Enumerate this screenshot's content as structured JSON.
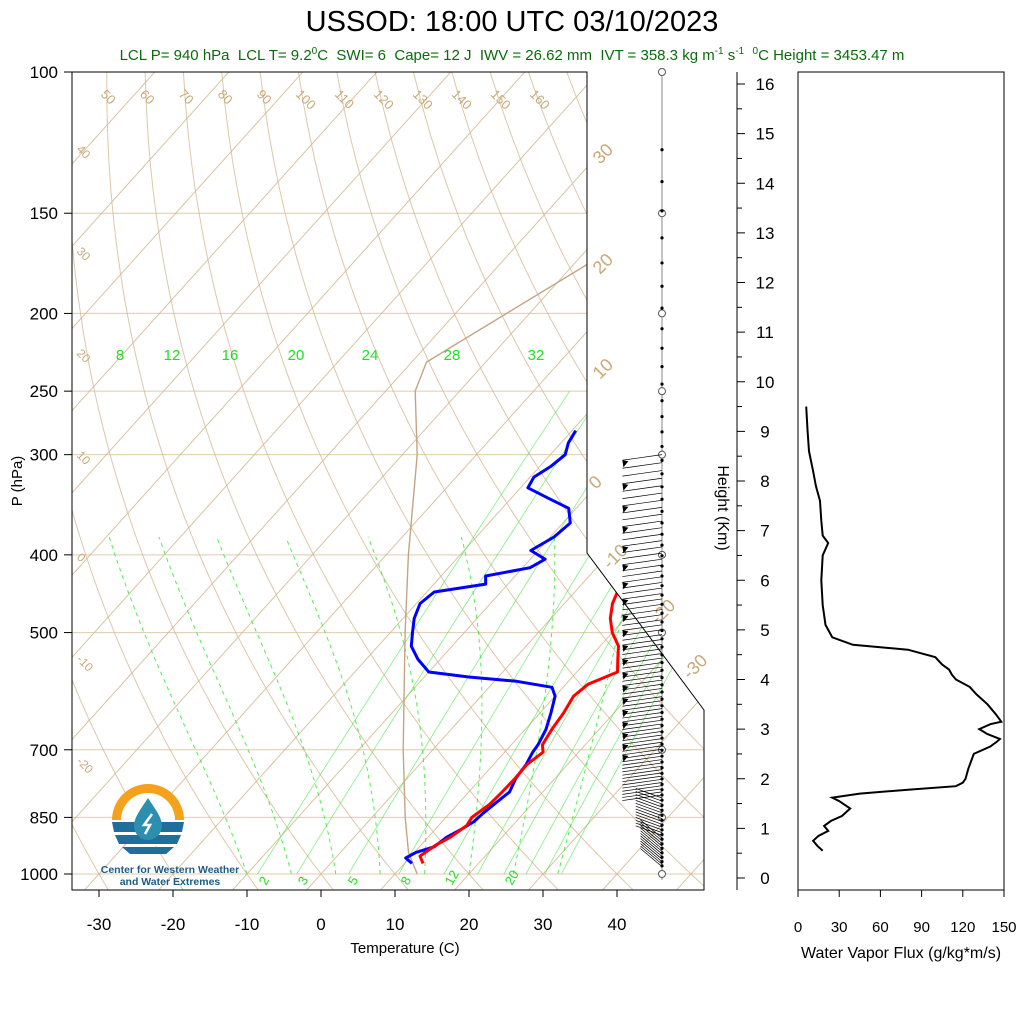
{
  "header": {
    "title": "USSOD: 18:00 UTC 03/10/2023",
    "lcl_p": "LCL P= 940 hPa",
    "lcl_t": "LCL T= 9.2",
    "lcl_t_unit": "C",
    "swi": "SWI= 6",
    "cape": "Cape= 12 J",
    "iwv": "IWV = 26.62 mm",
    "ivt": "IVT = 358.3 kg m",
    "ivt_exp1": "-1",
    "ivt_s": " s",
    "ivt_exp2": "-1",
    "zero_height": "0",
    "zero_height_rest": "C Height = 3453.47 m"
  },
  "logo": {
    "line1": "Center for Western Weather",
    "line2": "and Water Extremes",
    "colors": {
      "orange": "#f4a21d",
      "blue": "#1f6e9c",
      "teal": "#2b8fb0"
    },
    "icon": "water-drop-icon"
  },
  "colors": {
    "temperature": "#ff0000",
    "dewpoint": "#0000ff",
    "isotherm": "#d2b48c",
    "mixing_ratio": "#2ee62e",
    "parcel": "#c4a484",
    "flux": "#000000"
  },
  "chart_data": [
    {
      "type": "line",
      "name": "skew-t",
      "xlabel": "Temperature (C)",
      "ylabel": "P (hPa)",
      "xlim": [
        -35,
        52
      ],
      "ylim": [
        1000,
        100
      ],
      "yscale": "log",
      "x_ticks": [
        -30,
        -20,
        -10,
        0,
        10,
        20,
        30,
        40
      ],
      "y_ticks": [
        100,
        150,
        200,
        250,
        300,
        400,
        500,
        700,
        850,
        1000
      ],
      "skewed_isotherm_labels": [
        -20,
        -10,
        0,
        10,
        20,
        30
      ],
      "isotherm_labels_left": [
        40,
        30,
        20,
        10,
        0,
        -10,
        -20
      ],
      "dry_adiabat_labels": [
        50,
        60,
        70,
        80,
        90,
        100,
        110,
        120,
        130,
        140,
        150,
        160
      ],
      "moist_adiabat_labels_top": [
        8,
        12,
        16,
        20,
        24,
        28,
        32
      ],
      "mixing_ratio_labels_bottom": [
        2,
        3,
        5,
        8,
        12,
        20
      ],
      "temperature": [
        [
          970,
          12.5
        ],
        [
          950,
          11.2
        ],
        [
          920,
          12.0
        ],
        [
          900,
          13.0
        ],
        [
          870,
          13.8
        ],
        [
          850,
          13.5
        ],
        [
          820,
          14.3
        ],
        [
          790,
          14.5
        ],
        [
          760,
          14.6
        ],
        [
          730,
          14.5
        ],
        [
          705,
          15.2
        ],
        [
          690,
          14.2
        ],
        [
          660,
          13.6
        ],
        [
          630,
          13.2
        ],
        [
          600,
          12.5
        ],
        [
          580,
          13.0
        ],
        [
          560,
          15.5
        ],
        [
          540,
          14.0
        ],
        [
          520,
          12.5
        ],
        [
          500,
          10.0
        ],
        [
          480,
          8.0
        ],
        [
          460,
          6.5
        ],
        [
          440,
          5.5
        ],
        [
          420,
          5.0
        ],
        [
          405,
          5.5
        ],
        [
          395,
          3.0
        ],
        [
          380,
          1.5
        ],
        [
          360,
          -0.5
        ],
        [
          340,
          -1.5
        ],
        [
          320,
          -3.5
        ],
        [
          300,
          -5.5
        ],
        [
          285,
          -6.5
        ]
      ],
      "dewpoint": [
        [
          970,
          11.0
        ],
        [
          955,
          9.5
        ],
        [
          940,
          10.2
        ],
        [
          925,
          12.0
        ],
        [
          900,
          12.5
        ],
        [
          880,
          13.5
        ],
        [
          860,
          14.3
        ],
        [
          840,
          14.5
        ],
        [
          815,
          15.0
        ],
        [
          790,
          15.5
        ],
        [
          760,
          14.7
        ],
        [
          730,
          14.4
        ],
        [
          705,
          13.8
        ],
        [
          690,
          13.6
        ],
        [
          660,
          12.8
        ],
        [
          630,
          11.5
        ],
        [
          600,
          10.0
        ],
        [
          585,
          8.5
        ],
        [
          575,
          3.0
        ],
        [
          568,
          -4.0
        ],
        [
          560,
          -10.0
        ],
        [
          540,
          -13.0
        ],
        [
          520,
          -15.5
        ],
        [
          500,
          -17.0
        ],
        [
          480,
          -18.5
        ],
        [
          460,
          -19.5
        ],
        [
          445,
          -19.0
        ],
        [
          435,
          -13.0
        ],
        [
          425,
          -14.0
        ],
        [
          415,
          -9.0
        ],
        [
          405,
          -8.0
        ],
        [
          395,
          -11.0
        ],
        [
          380,
          -9.5
        ],
        [
          365,
          -9.0
        ],
        [
          350,
          -11.0
        ],
        [
          340,
          -15.0
        ],
        [
          330,
          -19.0
        ],
        [
          320,
          -19.5
        ],
        [
          310,
          -18.5
        ],
        [
          300,
          -18.0
        ],
        [
          290,
          -19.0
        ],
        [
          280,
          -19.5
        ]
      ],
      "parcel": [
        [
          1000,
          13.0
        ],
        [
          940,
          9.2
        ],
        [
          850,
          4.5
        ],
        [
          700,
          -4.0
        ],
        [
          500,
          -18.0
        ],
        [
          400,
          -27.0
        ],
        [
          300,
          -38.0
        ],
        [
          250,
          -46.0
        ],
        [
          230,
          -48.0
        ],
        [
          150,
          -33.0
        ],
        [
          100,
          -24.0
        ]
      ]
    },
    {
      "type": "line",
      "name": "water-vapor-flux",
      "xlabel": "Water Vapor Flux (g/kg*m/s)",
      "ylabel": "Height (Km)",
      "xlim": [
        0,
        150
      ],
      "ylim": [
        0,
        16.5
      ],
      "x_ticks": [
        0,
        30,
        60,
        90,
        120,
        150
      ],
      "y_ticks": [
        0,
        1,
        2,
        3,
        4,
        5,
        6,
        7,
        8,
        9,
        10,
        11,
        12,
        13,
        14,
        15,
        16
      ],
      "points": [
        [
          18,
          0.55
        ],
        [
          14,
          0.65
        ],
        [
          11,
          0.75
        ],
        [
          15,
          0.85
        ],
        [
          22,
          0.95
        ],
        [
          19,
          1.05
        ],
        [
          24,
          1.15
        ],
        [
          32,
          1.25
        ],
        [
          38,
          1.4
        ],
        [
          30,
          1.55
        ],
        [
          25,
          1.62
        ],
        [
          45,
          1.7
        ],
        [
          80,
          1.78
        ],
        [
          115,
          1.85
        ],
        [
          120,
          1.92
        ],
        [
          122,
          2.0
        ],
        [
          124,
          2.2
        ],
        [
          128,
          2.5
        ],
        [
          140,
          2.65
        ],
        [
          145,
          2.75
        ],
        [
          147,
          2.8
        ],
        [
          138,
          2.9
        ],
        [
          132,
          3.0
        ],
        [
          140,
          3.1
        ],
        [
          148,
          3.15
        ],
        [
          144,
          3.3
        ],
        [
          138,
          3.5
        ],
        [
          130,
          3.7
        ],
        [
          125,
          3.85
        ],
        [
          115,
          4.0
        ],
        [
          112,
          4.1
        ],
        [
          110,
          4.2
        ],
        [
          105,
          4.3
        ],
        [
          100,
          4.45
        ],
        [
          80,
          4.6
        ],
        [
          40,
          4.7
        ],
        [
          25,
          4.85
        ],
        [
          20,
          5.1
        ],
        [
          18,
          5.5
        ],
        [
          17,
          6.0
        ],
        [
          18,
          6.5
        ],
        [
          22,
          6.75
        ],
        [
          18,
          6.9
        ],
        [
          17,
          7.2
        ],
        [
          16,
          7.6
        ],
        [
          13,
          7.9
        ],
        [
          11,
          8.2
        ],
        [
          8,
          8.6
        ],
        [
          7,
          9.0
        ],
        [
          6,
          9.5
        ]
      ]
    }
  ],
  "wind_profile": {
    "description_levels_hpa": [
      1000,
      975,
      950,
      925,
      900,
      875,
      850,
      825,
      800,
      775,
      750,
      725,
      700,
      675,
      650,
      625,
      600,
      575,
      550,
      525,
      500,
      475,
      450,
      425,
      400,
      375,
      350,
      325,
      300
    ]
  }
}
